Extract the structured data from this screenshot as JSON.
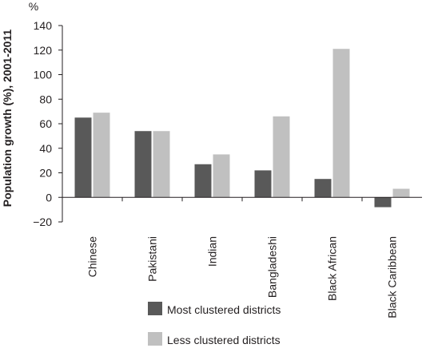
{
  "chart_data": {
    "type": "bar",
    "title": "",
    "unit": "%",
    "ylabel": "Population growth (%), 2001-2011",
    "xlabel": "",
    "ylim": [
      -20,
      140
    ],
    "yticks": [
      "140",
      "120",
      "100",
      "80",
      "60",
      "40",
      "20",
      "0",
      "−20"
    ],
    "ytick_values": [
      140,
      120,
      100,
      80,
      60,
      40,
      20,
      0,
      -20
    ],
    "categories": [
      "Chinese",
      "Pakistani",
      "Indian",
      "Bangladeshi",
      "Black African",
      "Black Caribbean"
    ],
    "series": [
      {
        "name": "Most clustered districts",
        "color": "#595959",
        "values": [
          65,
          54,
          27,
          22,
          15,
          -8
        ]
      },
      {
        "name": "Less clustered districts",
        "color": "#c0c0c0",
        "values": [
          69,
          54,
          35,
          66,
          121,
          7
        ]
      }
    ],
    "grid": false,
    "legend_position": "bottom"
  }
}
